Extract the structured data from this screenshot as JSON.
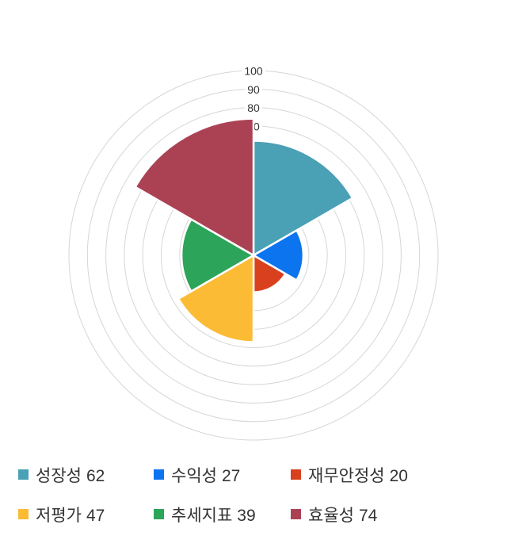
{
  "chart_data": {
    "type": "rose",
    "title": "",
    "categories": [
      "성장성",
      "수익성",
      "재무안정성",
      "저평가",
      "추세지표",
      "효율성"
    ],
    "values": [
      62,
      27,
      20,
      47,
      39,
      74
    ],
    "colors": [
      "#4aa0b5",
      "#0d74f0",
      "#d9411e",
      "#fbbb34",
      "#2ca45a",
      "#ab4254"
    ],
    "axis": {
      "min": 0,
      "max": 100,
      "step": 10,
      "shown_ticks": [
        70,
        80,
        90,
        100
      ],
      "grid": true,
      "grid_color": "#d6d6d6",
      "tick_color": "#333333",
      "tick_bg": "#ffffff"
    },
    "start_angle_deg": 0,
    "sector_span_deg": 60,
    "sector_gap_color": "#ffffff",
    "legend_position": "bottom",
    "legend_text_color": "#333333"
  }
}
